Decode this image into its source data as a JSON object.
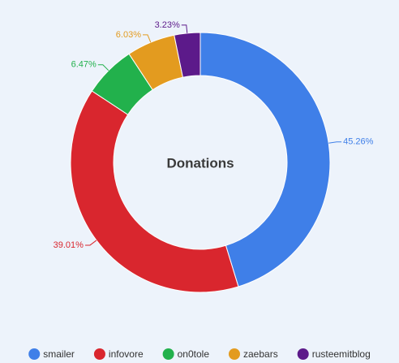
{
  "chart_data": {
    "type": "pie",
    "title": "Donations",
    "categories": [
      "smailer",
      "infovore",
      "on0tole",
      "zaebars",
      "rusteemitblog"
    ],
    "values": [
      45.26,
      39.01,
      6.47,
      6.03,
      3.23
    ],
    "value_labels": [
      "45.26%",
      "39.01%",
      "6.47%",
      "6.03%",
      "3.23%"
    ],
    "colors": [
      "#3f7fe8",
      "#d9262e",
      "#22b14c",
      "#e39b1f",
      "#5c1a8a"
    ]
  }
}
